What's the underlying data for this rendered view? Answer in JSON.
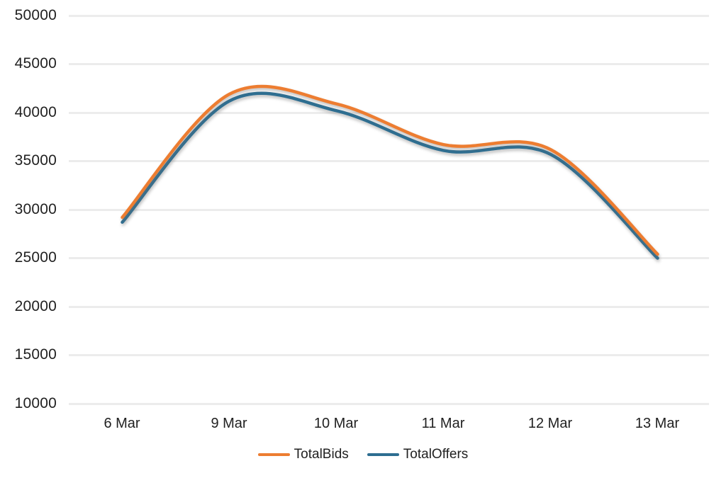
{
  "chart_data": {
    "type": "line",
    "title": "",
    "xlabel": "",
    "ylabel": "",
    "smooth": true,
    "grid": true,
    "legend_position": "bottom",
    "background_color": "#FFFFFF",
    "gridline_color": "#ECECEC",
    "text_color": "#212121",
    "x": [
      "6 Mar",
      "9 Mar",
      "10 Mar",
      "11 Mar",
      "12 Mar",
      "13 Mar"
    ],
    "series": [
      {
        "name": "TotalBids",
        "color": "#ED7D31",
        "values": [
          29200,
          41900,
          40900,
          36700,
          36200,
          25400
        ]
      },
      {
        "name": "TotalOffers",
        "color": "#2E6E91",
        "values": [
          28700,
          41200,
          40200,
          36100,
          35700,
          25000
        ]
      }
    ],
    "y_axis": {
      "min": 10000,
      "max": 50000,
      "step": 5000,
      "tick_labels": [
        "50000",
        "45000",
        "40000",
        "35000",
        "30000",
        "25000",
        "20000",
        "15000",
        "10000"
      ]
    }
  }
}
